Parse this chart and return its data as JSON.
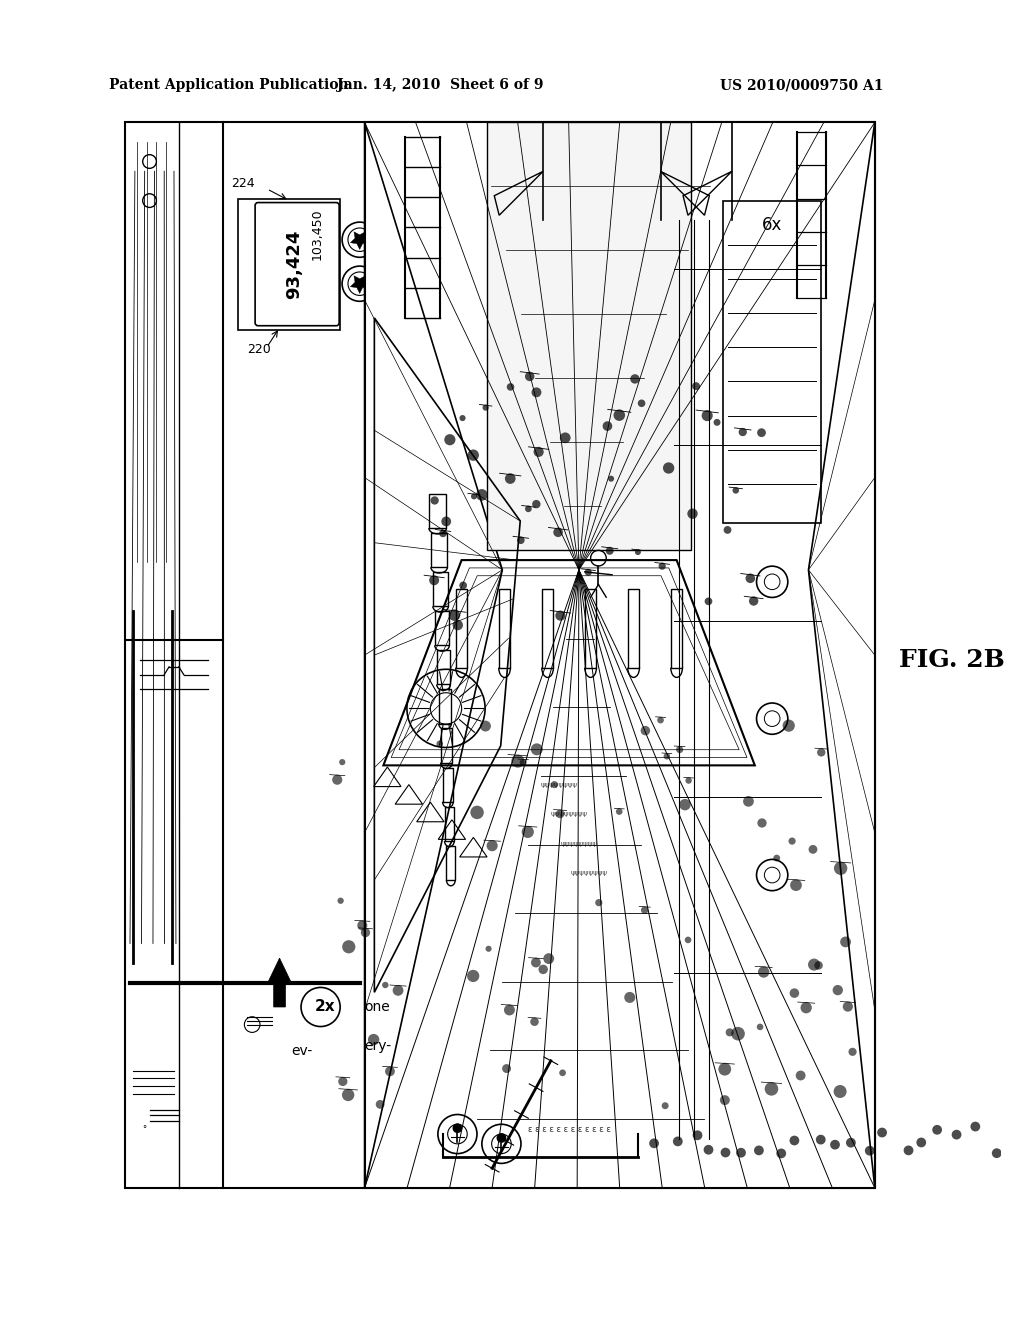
{
  "bg_color": "#ffffff",
  "header_left": "Patent Application Publication",
  "header_mid": "Jan. 14, 2010  Sheet 6 of 9",
  "header_right": "US 2010/0009750 A1",
  "fig_label": "FIG. 2B",
  "label_220": "220",
  "label_224": "224",
  "score_1": "103,450",
  "score_2": "93,424",
  "label_2x": "2x",
  "label_one": "one",
  "label_ery": "ery-",
  "label_ev": "ev-",
  "label_6x": "6x"
}
